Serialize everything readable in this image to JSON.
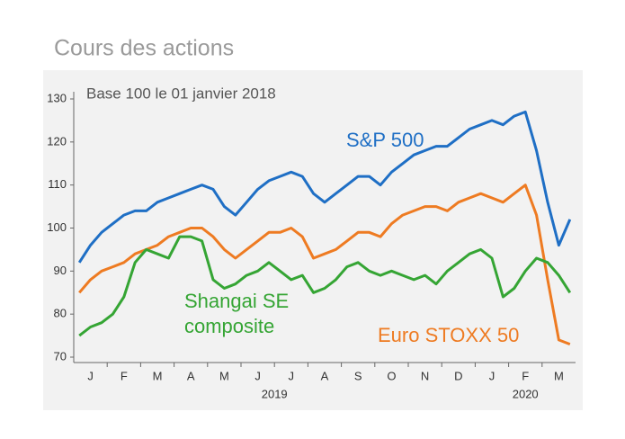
{
  "chart_data": {
    "type": "line",
    "title": "Cours des actions",
    "subtitle": "Base 100 le 01 janvier 2018",
    "categories": [
      null,
      "J",
      null,
      null,
      "F",
      null,
      null,
      "M",
      null,
      null,
      "A",
      null,
      null,
      "M",
      null,
      null,
      "J",
      null,
      null,
      "J",
      null,
      null,
      "A",
      null,
      null,
      "S",
      null,
      null,
      "O",
      null,
      null,
      "N",
      null,
      null,
      "D",
      null,
      null,
      "J",
      null,
      null,
      "F",
      null,
      null,
      "M",
      null
    ],
    "years": [
      "2019",
      "2020"
    ],
    "series": [
      {
        "name": "S&P 500",
        "color": "#1f6fc5",
        "values": [
          92,
          96,
          99,
          101,
          103,
          104,
          104,
          106,
          107,
          108,
          109,
          110,
          109,
          105,
          103,
          106,
          109,
          111,
          112,
          113,
          112,
          108,
          106,
          108,
          110,
          112,
          112,
          110,
          113,
          115,
          117,
          118,
          119,
          119,
          121,
          123,
          124,
          125,
          124,
          126,
          127,
          118,
          106,
          96,
          102
        ]
      },
      {
        "name": "Euro STOXX 50",
        "color": "#ee7b22",
        "values": [
          85,
          88,
          90,
          91,
          92,
          94,
          95,
          96,
          98,
          99,
          100,
          100,
          98,
          95,
          93,
          95,
          97,
          99,
          99,
          100,
          98,
          93,
          94,
          95,
          97,
          99,
          99,
          98,
          101,
          103,
          104,
          105,
          105,
          104,
          106,
          107,
          108,
          107,
          106,
          108,
          110,
          103,
          88,
          74,
          73
        ]
      },
      {
        "name": "Shangai SE composite",
        "color": "#35a534",
        "values": [
          75,
          77,
          78,
          80,
          84,
          92,
          95,
          94,
          93,
          98,
          98,
          97,
          88,
          86,
          87,
          89,
          90,
          92,
          90,
          88,
          89,
          85,
          86,
          88,
          91,
          92,
          90,
          89,
          90,
          89,
          88,
          89,
          87,
          90,
          92,
          94,
          95,
          93,
          84,
          86,
          90,
          93,
          92,
          89,
          85
        ]
      }
    ],
    "ylim": [
      70,
      130
    ],
    "yticks": [
      70,
      80,
      90,
      100,
      110,
      120,
      130
    ]
  }
}
